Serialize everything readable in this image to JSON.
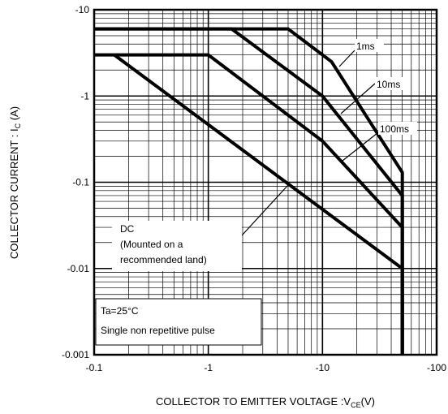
{
  "chart_data": {
    "type": "line",
    "title": "",
    "xlabel": "COLLECTOR TO EMITTER VOLTAGE :V",
    "xlabel_sub": "CE",
    "xlabel_unit": "(V)",
    "ylabel": "COLLECTOR CURRENT : I",
    "ylabel_sub": "C",
    "ylabel_unit": " (A)",
    "xscale": "log",
    "yscale": "log",
    "xlim": [
      -0.1,
      -100
    ],
    "ylim": [
      -0.001,
      -10
    ],
    "xticks": [
      {
        "value": -0.1,
        "label": "-0.1"
      },
      {
        "value": -1,
        "label": "-1"
      },
      {
        "value": -10,
        "label": "-10"
      },
      {
        "value": -100,
        "label": "-100"
      }
    ],
    "yticks": [
      {
        "value": -10,
        "label": "-10"
      },
      {
        "value": -1,
        "label": "-1"
      },
      {
        "value": -0.1,
        "label": "-0.1"
      },
      {
        "value": -0.01,
        "label": "-0.01"
      },
      {
        "value": -0.001,
        "label": "-0.001"
      }
    ],
    "grid": true,
    "series": [
      {
        "name": "1ms",
        "points": [
          [
            -0.1,
            -6
          ],
          [
            -5,
            -6
          ],
          [
            -12,
            -2.5
          ],
          [
            -50,
            -0.13
          ],
          [
            -50,
            -0.001
          ]
        ]
      },
      {
        "name": "10ms",
        "points": [
          [
            -0.1,
            -6
          ],
          [
            -1.6,
            -6
          ],
          [
            -10,
            -1
          ],
          [
            -50,
            -0.07
          ],
          [
            -50,
            -0.001
          ]
        ]
      },
      {
        "name": "100ms",
        "points": [
          [
            -0.1,
            -3
          ],
          [
            -1,
            -3
          ],
          [
            -10,
            -0.3
          ],
          [
            -50,
            -0.03
          ],
          [
            -50,
            -0.001
          ]
        ]
      },
      {
        "name": "DC",
        "points": [
          [
            -0.15,
            -3
          ],
          [
            -50,
            -0.01
          ],
          [
            -50,
            -0.001
          ]
        ]
      }
    ],
    "annotations": [
      {
        "label": "1ms"
      },
      {
        "label": "10ms"
      },
      {
        "label": "100ms"
      },
      {
        "lines": [
          "DC",
          "(Mounted on a",
          "recommended land)"
        ]
      },
      {
        "lines": [
          "Ta=25°C",
          "Single non repetitive pulse"
        ]
      }
    ]
  }
}
